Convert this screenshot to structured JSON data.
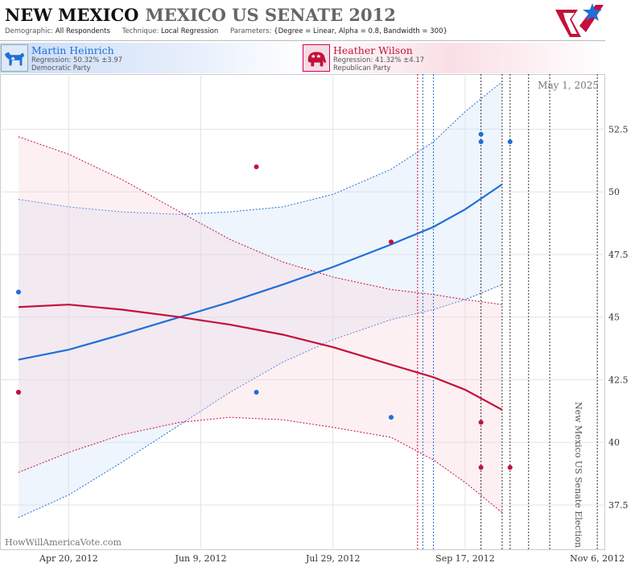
{
  "header": {
    "state": "NEW MEXICO",
    "race": "MEXICO US SENATE 2012",
    "demographic_label": "Demographic:",
    "demographic_value": "All Respondents",
    "technique_label": "Technique:",
    "technique_value": "Local Regression",
    "parameters_label": "Parameters:",
    "parameters_value": "{Degree = Linear, Alpha = 0.8, Bandwidth = 300}"
  },
  "candidates": [
    {
      "name": "Martin Heinrich",
      "regression": "Regression: 50.32% ±3.97",
      "party": "Democratic Party",
      "color": "#1e6fd9"
    },
    {
      "name": "Heather Wilson",
      "regression": "Regression: 41.32% ±4.17",
      "party": "Republican Party",
      "color": "#c4103a"
    }
  ],
  "chart_data": {
    "type": "line",
    "date_stamp": "May 1, 2025",
    "watermark": "HowWillAmericaVote.com",
    "event_label": "New Mexico US Senate Election",
    "x_ticks": [
      "Apr 20, 2012",
      "Jun 9, 2012",
      "Jul 29, 2012",
      "Sep 17, 2012",
      "Nov 6, 2012"
    ],
    "y_ticks": [
      "37.5",
      "40",
      "42.5",
      "45",
      "47.5",
      "50",
      "52.5"
    ],
    "ylim": [
      35.7,
      54.7
    ],
    "xlim": [
      "2012-03-25",
      "2012-11-09"
    ],
    "grid": true,
    "series": [
      {
        "name": "Martin Heinrich",
        "color": "#1e6fd9",
        "fit": [
          [
            "2012-04-01",
            43.3
          ],
          [
            "2012-04-20",
            43.7
          ],
          [
            "2012-05-10",
            44.3
          ],
          [
            "2012-06-01",
            45.0
          ],
          [
            "2012-06-20",
            45.6
          ],
          [
            "2012-07-10",
            46.3
          ],
          [
            "2012-07-29",
            47.0
          ],
          [
            "2012-08-20",
            47.9
          ],
          [
            "2012-09-05",
            48.6
          ],
          [
            "2012-09-17",
            49.3
          ],
          [
            "2012-10-01",
            50.3
          ]
        ],
        "upper": [
          [
            "2012-04-01",
            49.7
          ],
          [
            "2012-04-20",
            49.4
          ],
          [
            "2012-05-10",
            49.2
          ],
          [
            "2012-06-01",
            49.1
          ],
          [
            "2012-06-20",
            49.2
          ],
          [
            "2012-07-10",
            49.4
          ],
          [
            "2012-07-29",
            49.9
          ],
          [
            "2012-08-20",
            50.9
          ],
          [
            "2012-09-05",
            52.0
          ],
          [
            "2012-09-17",
            53.2
          ],
          [
            "2012-10-01",
            54.4
          ]
        ],
        "lower": [
          [
            "2012-04-01",
            37.0
          ],
          [
            "2012-04-20",
            37.9
          ],
          [
            "2012-05-10",
            39.2
          ],
          [
            "2012-06-01",
            40.7
          ],
          [
            "2012-06-20",
            42.0
          ],
          [
            "2012-07-10",
            43.2
          ],
          [
            "2012-07-29",
            44.1
          ],
          [
            "2012-08-20",
            44.9
          ],
          [
            "2012-09-05",
            45.3
          ],
          [
            "2012-09-17",
            45.7
          ],
          [
            "2012-10-01",
            46.3
          ]
        ],
        "points": [
          [
            "2012-04-01",
            46.0
          ],
          [
            "2012-04-01",
            42.0
          ],
          [
            "2012-06-30",
            42.0
          ],
          [
            "2012-08-20",
            41.0
          ],
          [
            "2012-09-23",
            52.3
          ],
          [
            "2012-09-23",
            52.0
          ],
          [
            "2012-10-04",
            52.0
          ]
        ]
      },
      {
        "name": "Heather Wilson",
        "color": "#c4103a",
        "fit": [
          [
            "2012-04-01",
            45.4
          ],
          [
            "2012-04-20",
            45.5
          ],
          [
            "2012-05-10",
            45.3
          ],
          [
            "2012-06-01",
            45.0
          ],
          [
            "2012-06-20",
            44.7
          ],
          [
            "2012-07-10",
            44.3
          ],
          [
            "2012-07-29",
            43.8
          ],
          [
            "2012-08-20",
            43.1
          ],
          [
            "2012-09-05",
            42.6
          ],
          [
            "2012-09-17",
            42.1
          ],
          [
            "2012-10-01",
            41.3
          ]
        ],
        "upper": [
          [
            "2012-04-01",
            52.2
          ],
          [
            "2012-04-20",
            51.5
          ],
          [
            "2012-05-10",
            50.5
          ],
          [
            "2012-06-01",
            49.2
          ],
          [
            "2012-06-20",
            48.1
          ],
          [
            "2012-07-10",
            47.2
          ],
          [
            "2012-07-29",
            46.6
          ],
          [
            "2012-08-20",
            46.1
          ],
          [
            "2012-09-05",
            45.9
          ],
          [
            "2012-09-17",
            45.7
          ],
          [
            "2012-10-01",
            45.5
          ]
        ],
        "lower": [
          [
            "2012-04-01",
            38.8
          ],
          [
            "2012-04-20",
            39.6
          ],
          [
            "2012-05-10",
            40.3
          ],
          [
            "2012-06-01",
            40.8
          ],
          [
            "2012-06-20",
            41.0
          ],
          [
            "2012-07-10",
            40.9
          ],
          [
            "2012-07-29",
            40.6
          ],
          [
            "2012-08-20",
            40.2
          ],
          [
            "2012-09-05",
            39.3
          ],
          [
            "2012-09-17",
            38.4
          ],
          [
            "2012-10-01",
            37.2
          ]
        ],
        "points": [
          [
            "2012-04-01",
            42.0
          ],
          [
            "2012-06-30",
            51.0
          ],
          [
            "2012-08-20",
            48.0
          ],
          [
            "2012-09-23",
            40.8
          ],
          [
            "2012-09-23",
            39.0
          ],
          [
            "2012-10-04",
            39.0
          ]
        ]
      }
    ],
    "vlines": [
      {
        "date": "2012-08-30",
        "color": "#c4103a"
      },
      {
        "date": "2012-09-01",
        "color": "#1e6fd9"
      },
      {
        "date": "2012-09-05",
        "color": "#1e6fd9"
      },
      {
        "date": "2012-09-23",
        "color": "#333333"
      },
      {
        "date": "2012-10-01",
        "color": "#333333"
      },
      {
        "date": "2012-10-04",
        "color": "#333333"
      },
      {
        "date": "2012-10-11",
        "color": "#333333"
      },
      {
        "date": "2012-10-19",
        "color": "#333333"
      },
      {
        "date": "2012-11-06",
        "color": "#333333"
      }
    ]
  }
}
